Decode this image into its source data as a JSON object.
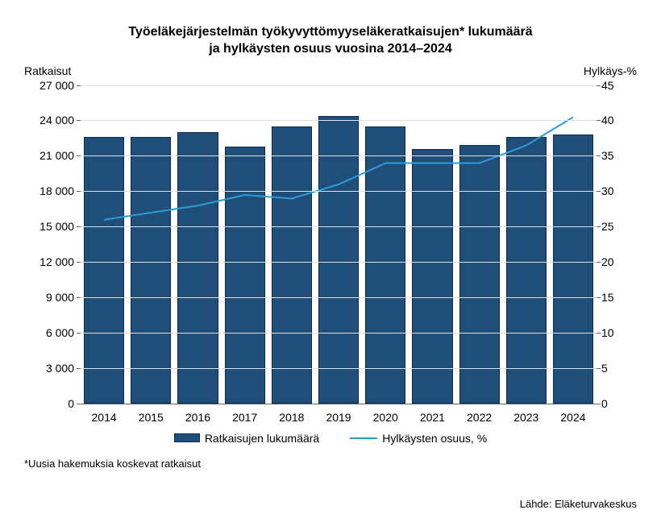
{
  "title_line1": "Työeläkejärjestelmän työkyvyttömyyseläkeratkaisujen* lukumäärä",
  "title_line2": "ja hylkäysten osuus vuosina 2014–2024",
  "left_axis_label": "Ratkaisut",
  "right_axis_label": "Hylkäys-%",
  "footnote": "*Uusia hakemuksia koskevat ratkaisut",
  "source": "Lähde: Eläketurvakeskus",
  "legend_bar": "Ratkaisujen lukumäärä",
  "legend_line": "Hylkäysten osuus, %",
  "chart": {
    "type": "bar+line",
    "categories": [
      "2014",
      "2015",
      "2016",
      "2017",
      "2018",
      "2019",
      "2020",
      "2021",
      "2022",
      "2023",
      "2024"
    ],
    "bar_values": [
      22600,
      22600,
      23000,
      21800,
      23500,
      24400,
      23500,
      21600,
      21900,
      22600,
      22800
    ],
    "line_values": [
      26.0,
      27.0,
      28.0,
      29.5,
      29.0,
      31.0,
      34.0,
      34.0,
      34.0,
      36.5,
      40.5
    ],
    "left_y": {
      "min": 0,
      "max": 27000,
      "step": 3000
    },
    "right_y": {
      "min": 0,
      "max": 45,
      "step": 5
    },
    "bar_color": "#1f4e79",
    "bar_border": "#0a2a55",
    "line_color": "#2e9bd6",
    "line_width": 2,
    "background_color": "#ffffff",
    "grid_color": "#e0e0e0",
    "axis_font_size": 14,
    "title_font_size": 16,
    "title_font_weight": "bold"
  }
}
